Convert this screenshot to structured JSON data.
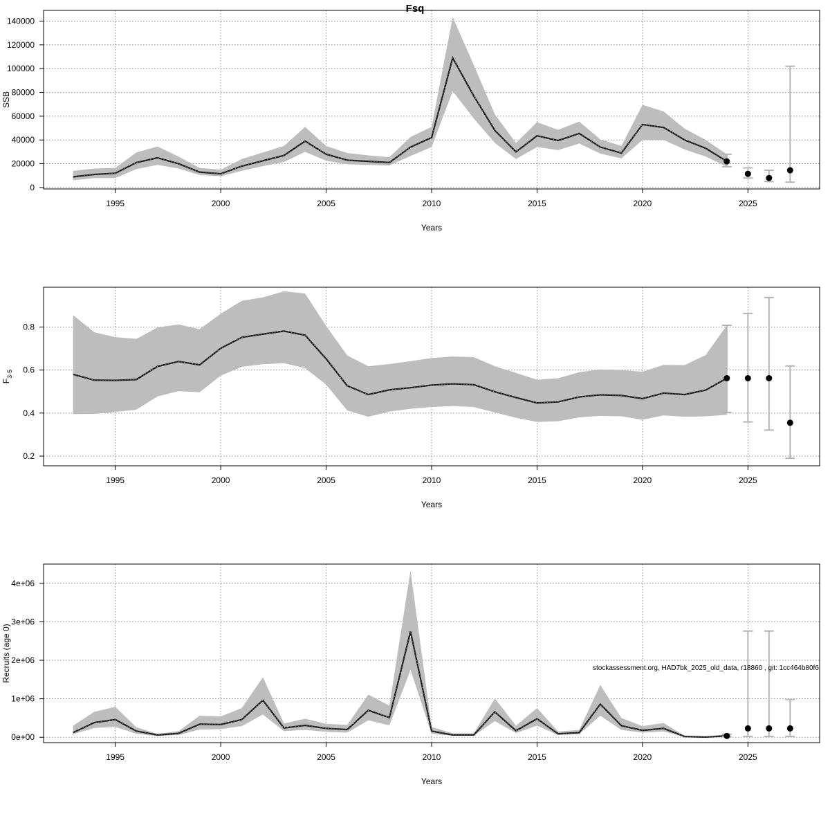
{
  "title": "Fsq",
  "footnote": "stockassessment.org, HAD7bk_2025_old_data, r18860 , git: 1cc464b80f6",
  "colors": {
    "band": "#bdbdbd",
    "line": "#1a1a1a",
    "errorbar": "#b5b5b5",
    "point": "#000000",
    "grid": "#6e6e6e",
    "frame": "#000000"
  },
  "chart_data": [
    {
      "type": "line",
      "panel": "ssb",
      "xlabel": "Years",
      "ylabel": "SSB",
      "xlim": [
        1991.6,
        2028.4
      ],
      "ylim": [
        -1200,
        149000
      ],
      "x_ticks": [
        1995,
        2000,
        2005,
        2010,
        2015,
        2020,
        2025
      ],
      "y_ticks": [
        0,
        20000,
        40000,
        60000,
        80000,
        100000,
        120000,
        140000
      ],
      "y_tick_labels": [
        "0",
        "20000",
        "40000",
        "60000",
        "80000",
        "100000",
        "120000",
        "140000"
      ],
      "grid": true,
      "series": [
        {
          "x": [
            1993,
            1994,
            1995,
            1996,
            1997,
            1998,
            1999,
            2000,
            2001,
            2002,
            2003,
            2004,
            2005,
            2006,
            2007,
            2008,
            2009,
            2010,
            2011,
            2012,
            2013,
            2014,
            2015,
            2016,
            2017,
            2018,
            2019,
            2020,
            2021,
            2022,
            2023,
            2024
          ],
          "values": [
            9000,
            11000,
            12000,
            21000,
            25000,
            20000,
            13000,
            11500,
            18000,
            22500,
            27000,
            39000,
            28000,
            23000,
            22000,
            21000,
            34000,
            42000,
            109000,
            77000,
            48000,
            30000,
            43500,
            39500,
            45500,
            34000,
            29000,
            53000,
            50500,
            40000,
            33000,
            22000
          ],
          "lower": [
            6000,
            8000,
            8000,
            15500,
            19000,
            16000,
            10500,
            9500,
            14000,
            18000,
            21500,
            30000,
            22500,
            19500,
            19000,
            18500,
            26500,
            34000,
            81000,
            58000,
            37500,
            24000,
            34000,
            31500,
            37000,
            28500,
            24500,
            40000,
            40000,
            32000,
            26000,
            17500
          ],
          "upper": [
            14000,
            16000,
            16500,
            29500,
            34500,
            26000,
            16500,
            15000,
            24000,
            29500,
            35000,
            51000,
            35000,
            29000,
            27000,
            25500,
            42500,
            51000,
            143500,
            103000,
            61500,
            37500,
            55000,
            48500,
            55500,
            40500,
            35000,
            69500,
            64000,
            49500,
            40000,
            28000
          ]
        }
      ],
      "forecast": {
        "x": [
          2024,
          2025,
          2026,
          2027
        ],
        "values": [
          22000,
          11500,
          8000,
          14500
        ],
        "lower": [
          17500,
          8000,
          5000,
          4500
        ],
        "upper": [
          28000,
          16500,
          14500,
          102000
        ]
      }
    },
    {
      "type": "line",
      "panel": "fbar",
      "xlabel": "Years",
      "ylabel": "F",
      "ylabel_sub": "3-5",
      "xlim": [
        1991.6,
        2028.4
      ],
      "ylim": [
        0.155,
        0.985
      ],
      "x_ticks": [
        1995,
        2000,
        2005,
        2010,
        2015,
        2020,
        2025
      ],
      "y_ticks": [
        0.2,
        0.4,
        0.6,
        0.8
      ],
      "y_tick_labels": [
        "0.2",
        "0.4",
        "0.6",
        "0.8"
      ],
      "grid": true,
      "series": [
        {
          "x": [
            1993,
            1994,
            1995,
            1996,
            1997,
            1998,
            1999,
            2000,
            2001,
            2002,
            2003,
            2004,
            2005,
            2006,
            2007,
            2008,
            2009,
            2010,
            2011,
            2012,
            2013,
            2014,
            2015,
            2016,
            2017,
            2018,
            2019,
            2020,
            2021,
            2022,
            2023,
            2024
          ],
          "values": [
            0.58,
            0.553,
            0.552,
            0.556,
            0.617,
            0.64,
            0.624,
            0.701,
            0.752,
            0.767,
            0.781,
            0.762,
            0.652,
            0.527,
            0.486,
            0.508,
            0.518,
            0.53,
            0.536,
            0.532,
            0.499,
            0.472,
            0.447,
            0.452,
            0.475,
            0.485,
            0.482,
            0.467,
            0.493,
            0.486,
            0.507,
            0.562
          ],
          "lower": [
            0.395,
            0.396,
            0.405,
            0.416,
            0.477,
            0.502,
            0.497,
            0.574,
            0.615,
            0.627,
            0.632,
            0.609,
            0.532,
            0.412,
            0.383,
            0.407,
            0.42,
            0.428,
            0.433,
            0.428,
            0.403,
            0.378,
            0.359,
            0.362,
            0.38,
            0.387,
            0.385,
            0.369,
            0.389,
            0.383,
            0.385,
            0.392
          ],
          "upper": [
            0.855,
            0.776,
            0.753,
            0.745,
            0.798,
            0.812,
            0.79,
            0.862,
            0.922,
            0.938,
            0.966,
            0.956,
            0.805,
            0.668,
            0.618,
            0.628,
            0.641,
            0.656,
            0.663,
            0.66,
            0.618,
            0.587,
            0.555,
            0.562,
            0.59,
            0.603,
            0.6,
            0.592,
            0.624,
            0.623,
            0.67,
            0.808
          ]
        }
      ],
      "forecast": {
        "x": [
          2024,
          2025,
          2026,
          2027
        ],
        "values": [
          0.562,
          0.562,
          0.562,
          0.355
        ],
        "lower": [
          0.403,
          0.359,
          0.321,
          0.19
        ],
        "upper": [
          0.808,
          0.863,
          0.937,
          0.619
        ]
      }
    },
    {
      "type": "line",
      "panel": "recruits",
      "xlabel": "Years",
      "ylabel": "Recruits (age 0)",
      "xlim": [
        1991.6,
        2028.4
      ],
      "ylim": [
        -140000,
        4500000
      ],
      "x_ticks": [
        1995,
        2000,
        2005,
        2010,
        2015,
        2020,
        2025
      ],
      "y_ticks": [
        0,
        1000000,
        2000000,
        3000000,
        4000000
      ],
      "y_tick_labels": [
        "0e+00",
        "1e+06",
        "2e+06",
        "3e+06",
        "4e+06"
      ],
      "grid": true,
      "series": [
        {
          "x": [
            1993,
            1994,
            1995,
            1996,
            1997,
            1998,
            1999,
            2000,
            2001,
            2002,
            2003,
            2004,
            2005,
            2006,
            2007,
            2008,
            2009,
            2010,
            2011,
            2012,
            2013,
            2014,
            2015,
            2016,
            2017,
            2018,
            2019,
            2020,
            2021,
            2022,
            2023,
            2024
          ],
          "values": [
            120000,
            380000,
            460000,
            160000,
            60000,
            100000,
            340000,
            330000,
            460000,
            960000,
            240000,
            310000,
            230000,
            200000,
            700000,
            510000,
            2750000,
            160000,
            60000,
            60000,
            660000,
            170000,
            480000,
            90000,
            120000,
            860000,
            300000,
            180000,
            230000,
            20000,
            5000,
            35000
          ],
          "lower": [
            80000,
            240000,
            270000,
            90000,
            30000,
            60000,
            200000,
            210000,
            290000,
            590000,
            160000,
            190000,
            140000,
            120000,
            440000,
            310000,
            1750000,
            90000,
            40000,
            40000,
            420000,
            110000,
            300000,
            60000,
            80000,
            560000,
            190000,
            120000,
            150000,
            10000,
            2000,
            15000
          ],
          "upper": [
            300000,
            660000,
            790000,
            260000,
            90000,
            160000,
            560000,
            540000,
            760000,
            1560000,
            360000,
            480000,
            350000,
            320000,
            1110000,
            820000,
            4330000,
            270000,
            100000,
            100000,
            1010000,
            300000,
            760000,
            150000,
            190000,
            1360000,
            500000,
            290000,
            370000,
            35000,
            15000,
            80000
          ]
        }
      ],
      "forecast": {
        "x": [
          2024,
          2025,
          2026,
          2027
        ],
        "values": [
          35000,
          230000,
          230000,
          230000
        ],
        "lower": [
          15000,
          20000,
          20000,
          20000
        ],
        "upper": [
          80000,
          2760000,
          2760000,
          980000
        ]
      }
    }
  ]
}
